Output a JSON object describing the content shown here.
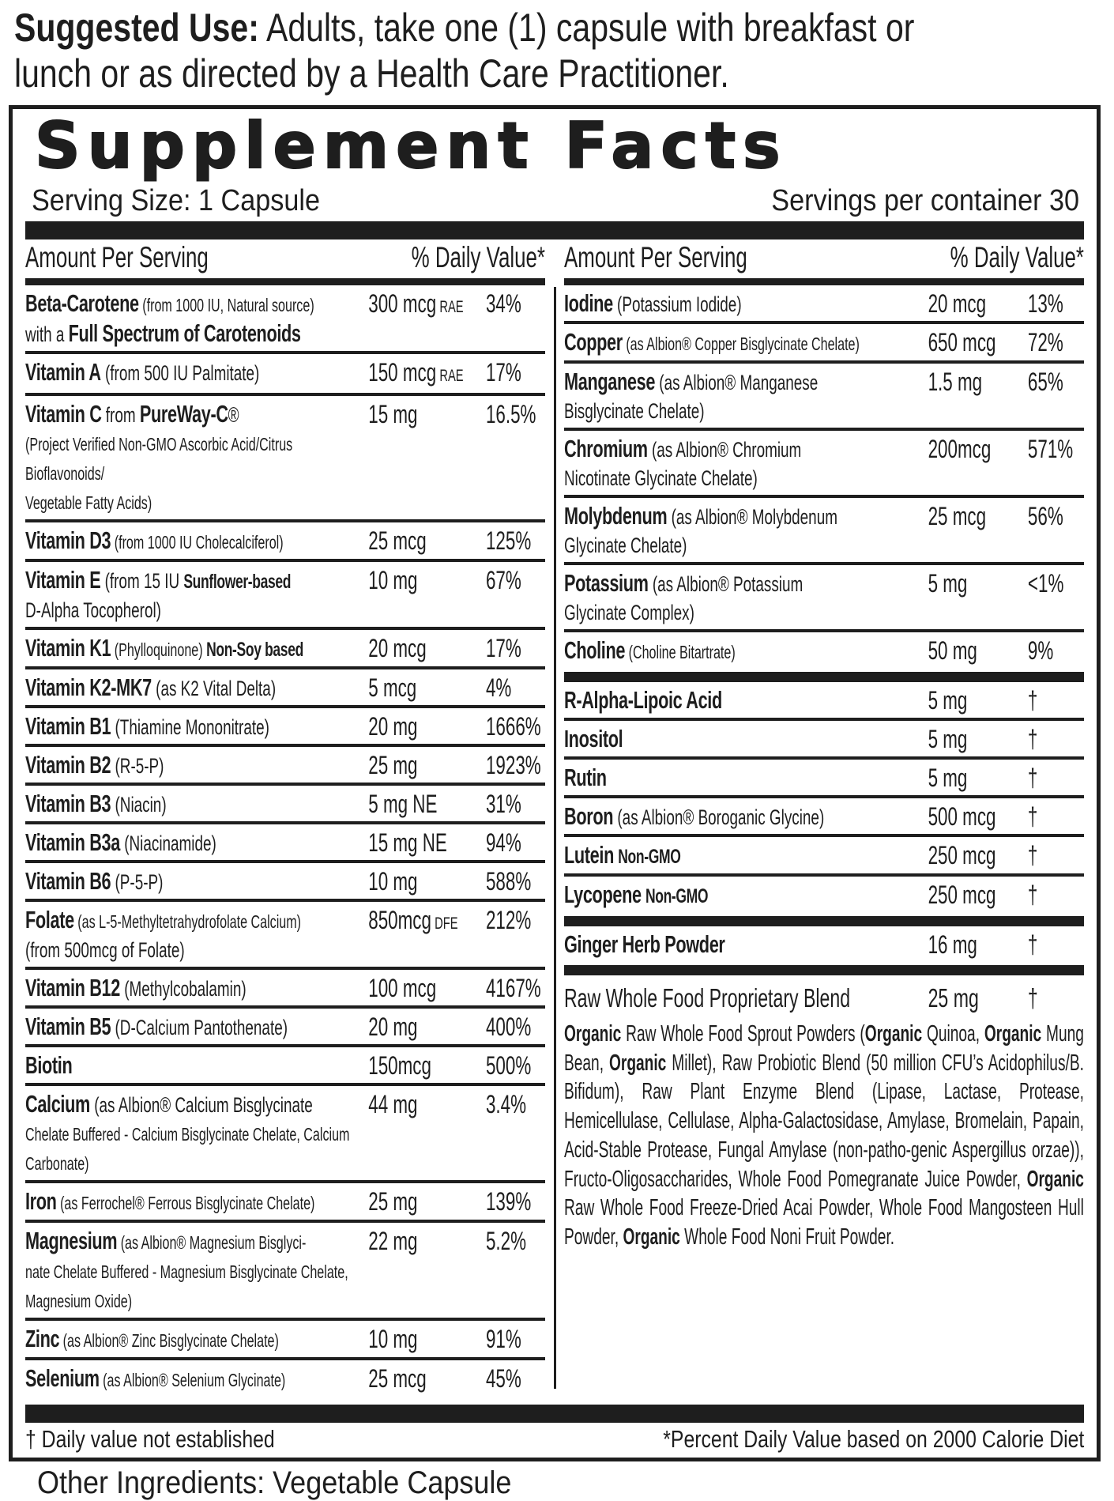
{
  "suggested_use": {
    "label": "Suggested Use:",
    "line1": " Adults, take one (1) capsule with breakfast or",
    "line2": "lunch or as directed by a Health Care Practitioner."
  },
  "facts": {
    "title": "Supplement Facts",
    "serving_size": "Serving Size: 1 Capsule",
    "servings_per_container": "Servings per container 30",
    "header_amount": "Amount Per Serving",
    "header_dv": "% Daily Value*"
  },
  "left": [
    {
      "name": [
        {
          "t": "Beta-Carotene",
          "b": true
        },
        {
          "t": " (from 1000 IU, Natural source)",
          "s": true
        },
        {
          "br": true
        },
        {
          "t": "with a "
        },
        {
          "t": "Full Spectrum of Carotenoids",
          "b": true
        }
      ],
      "amount": "300 mcg",
      "unit": "RAE",
      "dv": "34%"
    },
    {
      "name": [
        {
          "t": "Vitamin A",
          "b": true
        },
        {
          "t": " (from 500 IU Palmitate)"
        }
      ],
      "amount": "150 mcg",
      "unit": "RAE",
      "dv": "17%"
    },
    {
      "name": [
        {
          "t": "Vitamin C",
          "b": true
        },
        {
          "t": "  from "
        },
        {
          "t": "PureWay-C",
          "b": true
        },
        {
          "t": "®"
        },
        {
          "br": true
        },
        {
          "t": "(Project Verified Non-GMO Ascorbic Acid/Citrus Bioflavonoids/",
          "s": true
        },
        {
          "br": true
        },
        {
          "t": "Vegetable Fatty Acids)",
          "s": true
        }
      ],
      "amount": "15 mg",
      "dv": "16.5%"
    },
    {
      "name": [
        {
          "t": "Vitamin D3",
          "b": true
        },
        {
          "t": " (from 1000 IU Cholecalciferol)",
          "s": true
        }
      ],
      "amount": "25 mcg",
      "dv": "125%"
    },
    {
      "name": [
        {
          "t": "Vitamin E",
          "b": true
        },
        {
          "t": "  (from 15 IU "
        },
        {
          "t": "Sunflower-based",
          "b": true,
          "s": true
        },
        {
          "br": true
        },
        {
          "t": "D-Alpha Tocopherol)"
        }
      ],
      "amount": "10 mg",
      "dv": "67%"
    },
    {
      "name": [
        {
          "t": "Vitamin K1",
          "b": true
        },
        {
          "t": " (Phylloquinone) ",
          "s": true
        },
        {
          "t": "Non-Soy based",
          "b": true,
          "s": true
        }
      ],
      "amount": "20 mcg",
      "dv": "17%"
    },
    {
      "name": [
        {
          "t": "Vitamin K2-MK7",
          "b": true
        },
        {
          "t": " (as K2 Vital Delta)"
        }
      ],
      "amount": "5 mcg",
      "dv": "4%"
    },
    {
      "name": [
        {
          "t": "Vitamin B1",
          "b": true
        },
        {
          "t": " (Thiamine Mononitrate)"
        }
      ],
      "amount": "20 mg",
      "dv": "1666%"
    },
    {
      "name": [
        {
          "t": "Vitamin B2",
          "b": true
        },
        {
          "t": " (R-5-P)"
        }
      ],
      "amount": "25 mg",
      "dv": "1923%"
    },
    {
      "name": [
        {
          "t": "Vitamin B3",
          "b": true
        },
        {
          "t": " (Niacin)"
        }
      ],
      "amount": "5 mg NE",
      "dv": "31%"
    },
    {
      "name": [
        {
          "t": "Vitamin B3a",
          "b": true
        },
        {
          "t": " (Niacinamide)"
        }
      ],
      "amount": "15 mg NE",
      "dv": "94%"
    },
    {
      "name": [
        {
          "t": "Vitamin B6",
          "b": true
        },
        {
          "t": " (P-5-P)"
        }
      ],
      "amount": "10 mg",
      "dv": "588%"
    },
    {
      "name": [
        {
          "t": "Folate",
          "b": true
        },
        {
          "t": " (as L-5-Methyltetrahydrofolate Calcium)",
          "s": true
        },
        {
          "br": true
        },
        {
          "t": "(from 500mcg of Folate)"
        }
      ],
      "amount": "850mcg",
      "unit": "DFE",
      "dv": "212%"
    },
    {
      "name": [
        {
          "t": "Vitamin B12",
          "b": true
        },
        {
          "t": " (Methylcobalamin)"
        }
      ],
      "amount": "100 mcg",
      "dv": "4167%"
    },
    {
      "name": [
        {
          "t": "Vitamin B5",
          "b": true
        },
        {
          "t": " (D-Calcium Pantothenate)"
        }
      ],
      "amount": "20 mg",
      "dv": "400%"
    },
    {
      "name": [
        {
          "t": "Biotin",
          "b": true
        }
      ],
      "amount": "150mcg",
      "dv": "500%"
    },
    {
      "name": [
        {
          "t": "Calcium",
          "b": true
        },
        {
          "t": " (as Albion® Calcium Bisglycinate"
        },
        {
          "br": true
        },
        {
          "t": "Chelate Buffered - Calcium Bisglycinate Chelate, Calcium Carbonate)",
          "s": true
        }
      ],
      "amount": "44 mg",
      "dv": "3.4%"
    },
    {
      "name": [
        {
          "t": "Iron",
          "b": true
        },
        {
          "t": " (as Ferrochel® Ferrous Bisglycinate Chelate)",
          "s": true
        }
      ],
      "amount": "25 mg",
      "dv": "139%"
    },
    {
      "name": [
        {
          "t": "Magnesium",
          "b": true
        },
        {
          "t": " (as Albion® Magnesium Bisglyci-",
          "s": true
        },
        {
          "br": true
        },
        {
          "t": "nate Chelate Buffered - Magnesium Bisglycinate Chelate, Magnesium Oxide)",
          "s": true
        }
      ],
      "amount": "22 mg",
      "dv": "5.2%"
    },
    {
      "name": [
        {
          "t": "Zinc",
          "b": true
        },
        {
          "t": " (as Albion® Zinc Bisglycinate Chelate)",
          "s": true
        }
      ],
      "amount": "10 mg",
      "dv": "91%"
    },
    {
      "name": [
        {
          "t": "Selenium",
          "b": true
        },
        {
          "t": " (as Albion® Selenium Glycinate)",
          "s": true
        }
      ],
      "amount": "25 mcg",
      "dv": "45%"
    }
  ],
  "right_groups": [
    [
      {
        "name": [
          {
            "t": "Iodine",
            "b": true
          },
          {
            "t": " (Potassium Iodide)"
          }
        ],
        "amount": "20 mcg",
        "dv": "13%"
      },
      {
        "name": [
          {
            "t": "Copper",
            "b": true
          },
          {
            "t": " (as Albion® Copper Bisglycinate Chelate)",
            "s": true
          }
        ],
        "amount": "650 mcg",
        "dv": "72%"
      },
      {
        "name": [
          {
            "t": "Manganese",
            "b": true
          },
          {
            "t": " (as Albion® Manganese"
          },
          {
            "br": true
          },
          {
            "t": "Bisglycinate Chelate)"
          }
        ],
        "amount": "1.5 mg",
        "dv": "65%"
      },
      {
        "name": [
          {
            "t": "Chromium",
            "b": true
          },
          {
            "t": " (as Albion® Chromium"
          },
          {
            "br": true
          },
          {
            "t": "Nicotinate Glycinate Chelate)"
          }
        ],
        "amount": "200mcg",
        "dv": "571%"
      },
      {
        "name": [
          {
            "t": "Molybdenum",
            "b": true
          },
          {
            "t": " (as Albion® Molybdenum"
          },
          {
            "br": true
          },
          {
            "t": "Glycinate Chelate)"
          }
        ],
        "amount": "25 mcg",
        "dv": "56%"
      },
      {
        "name": [
          {
            "t": "Potassium",
            "b": true
          },
          {
            "t": " (as Albion® Potassium"
          },
          {
            "br": true
          },
          {
            "t": "Glycinate Complex)"
          }
        ],
        "amount": "5 mg",
        "dv": "<1%"
      },
      {
        "name": [
          {
            "t": "Choline",
            "b": true
          },
          {
            "t": " (Choline Bitartrate)",
            "s": true
          }
        ],
        "amount": "50 mg",
        "dv": "9%"
      }
    ],
    [
      {
        "name": [
          {
            "t": "R-Alpha-Lipoic Acid",
            "b": true
          }
        ],
        "amount": "5 mg",
        "dv": "†"
      },
      {
        "name": [
          {
            "t": "Inositol",
            "b": true
          }
        ],
        "amount": "5 mg",
        "dv": "†"
      },
      {
        "name": [
          {
            "t": "Rutin",
            "b": true
          }
        ],
        "amount": "5 mg",
        "dv": "†"
      },
      {
        "name": [
          {
            "t": "Boron",
            "b": true
          },
          {
            "t": " (as Albion® Boroganic Glycine)"
          }
        ],
        "amount": "500 mcg",
        "dv": "†"
      },
      {
        "name": [
          {
            "t": "Lutein",
            "b": true
          },
          {
            "t": " "
          },
          {
            "t": "Non-GMO",
            "b": true,
            "s": true
          }
        ],
        "amount": "250 mcg",
        "dv": "†"
      },
      {
        "name": [
          {
            "t": "Lycopene",
            "b": true
          },
          {
            "t": " "
          },
          {
            "t": "Non-GMO",
            "b": true,
            "s": true
          }
        ],
        "amount": "250 mcg",
        "dv": "†"
      }
    ],
    [
      {
        "name": [
          {
            "t": "Ginger Herb Powder",
            "b": true
          }
        ],
        "amount": "16 mg",
        "dv": "†"
      }
    ]
  ],
  "blend": {
    "name": "Raw Whole Food Proprietary Blend",
    "amount": "25 mg",
    "dv": "†",
    "text": [
      {
        "t": "Organic",
        "b": true
      },
      {
        "t": " Raw Whole Food Sprout Powders ("
      },
      {
        "t": "Organic",
        "b": true
      },
      {
        "t": " Quinoa, "
      },
      {
        "t": "Organic",
        "b": true
      },
      {
        "t": " Mung Bean, "
      },
      {
        "t": "Organic",
        "b": true
      },
      {
        "t": " Millet), Raw Probiotic Blend (50 million CFU’s Acidophilus/B. Bifidum), Raw Plant Enzyme Blend (Lipase, Lactase, Protease, Hemicellulase, Cellulase, Alpha-Galactosidase, Amylase, Bromelain, Papain, Acid-Stable Protease, Fungal Amylase (non-patho-genic Aspergillus orzae)), Fructo-Oligosaccharides, Whole Food Pomegranate Juice Powder, "
      },
      {
        "t": "Organic",
        "b": true
      },
      {
        "t": " Raw Whole Food Freeze-Dried Acai Powder, Whole Food Mangosteen Hull Powder, "
      },
      {
        "t": "Organic",
        "b": true
      },
      {
        "t": " Whole Food Noni Fruit Powder."
      }
    ]
  },
  "footer": {
    "dagger_note": "† Daily value not established",
    "dv_note": "*Percent Daily Value based on 2000 Calorie Diet"
  },
  "other_ingredients": "Other Ingredients: Vegetable Capsule"
}
